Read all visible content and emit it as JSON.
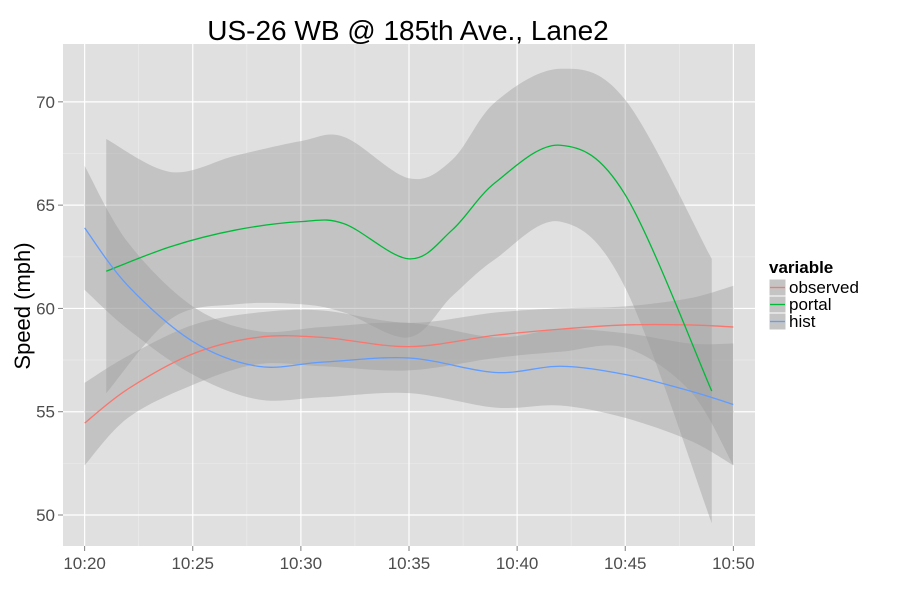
{
  "chart_data": {
    "type": "line",
    "title": "US-26 WB @ 185th Ave., Lane2",
    "xlabel": "",
    "ylabel": "Speed (mph)",
    "xlim": [
      "10:19",
      "10:51"
    ],
    "ylim": [
      48.5,
      72.8
    ],
    "x_ticks": [
      "10:20",
      "10:25",
      "10:30",
      "10:35",
      "10:40",
      "10:45",
      "10:50"
    ],
    "y_ticks": [
      50,
      55,
      60,
      65,
      70
    ],
    "grid": true,
    "legend": {
      "title": "variable",
      "position": "right",
      "items": [
        "observed",
        "portal",
        "hist"
      ]
    },
    "series": [
      {
        "name": "observed",
        "color": "#F8766D",
        "x": [
          "10:20",
          "10:22",
          "10:25",
          "10:28",
          "10:31",
          "10:35",
          "10:39",
          "10:42",
          "10:45",
          "10:48",
          "10:50"
        ],
        "values": [
          54.45,
          56.1,
          57.8,
          58.6,
          58.6,
          58.15,
          58.7,
          59.0,
          59.2,
          59.2,
          59.1
        ],
        "ci_lower": [
          52.4,
          54.7,
          56.3,
          57.3,
          57.2,
          57.0,
          57.6,
          57.9,
          58.1,
          56.0,
          52.4
        ],
        "ci_upper": [
          56.4,
          57.7,
          59.2,
          59.8,
          59.9,
          59.3,
          59.8,
          60.0,
          60.1,
          60.5,
          61.1
        ]
      },
      {
        "name": "portal",
        "color": "#00BA38",
        "x": [
          "10:21",
          "10:24",
          "10:27",
          "10:30",
          "10:32",
          "10:35",
          "10:37",
          "10:39",
          "10:42",
          "10:45",
          "10:49"
        ],
        "values": [
          61.8,
          63.0,
          63.8,
          64.2,
          64.1,
          62.4,
          63.8,
          66.1,
          67.9,
          65.5,
          56.0
        ],
        "ci_lower": [
          55.9,
          59.5,
          60.2,
          60.2,
          59.8,
          58.6,
          60.6,
          62.4,
          64.2,
          61.0,
          49.6
        ],
        "ci_upper": [
          68.2,
          66.6,
          67.4,
          68.1,
          68.3,
          66.3,
          67.2,
          70.0,
          71.6,
          70.1,
          62.4
        ]
      },
      {
        "name": "hist",
        "color": "#619CFF",
        "x": [
          "10:20",
          "10:22",
          "10:25",
          "10:28",
          "10:31",
          "10:35",
          "10:39",
          "10:42",
          "10:45",
          "10:48",
          "10:50"
        ],
        "values": [
          63.9,
          61.1,
          58.4,
          57.2,
          57.4,
          57.6,
          56.9,
          57.2,
          56.8,
          56.0,
          55.35
        ],
        "ci_lower": [
          60.9,
          59.0,
          56.8,
          55.6,
          55.7,
          55.9,
          55.2,
          55.3,
          54.7,
          53.6,
          52.4
        ],
        "ci_upper": [
          66.9,
          63.2,
          60.1,
          58.9,
          59.1,
          59.3,
          58.6,
          59.0,
          58.8,
          58.3,
          58.3
        ]
      }
    ]
  },
  "colors": {
    "panel_background": "#E0E0E0",
    "grid_major": "#FFFFFF",
    "grid_minor": "#EDEDED",
    "ribbon": "#999999"
  }
}
